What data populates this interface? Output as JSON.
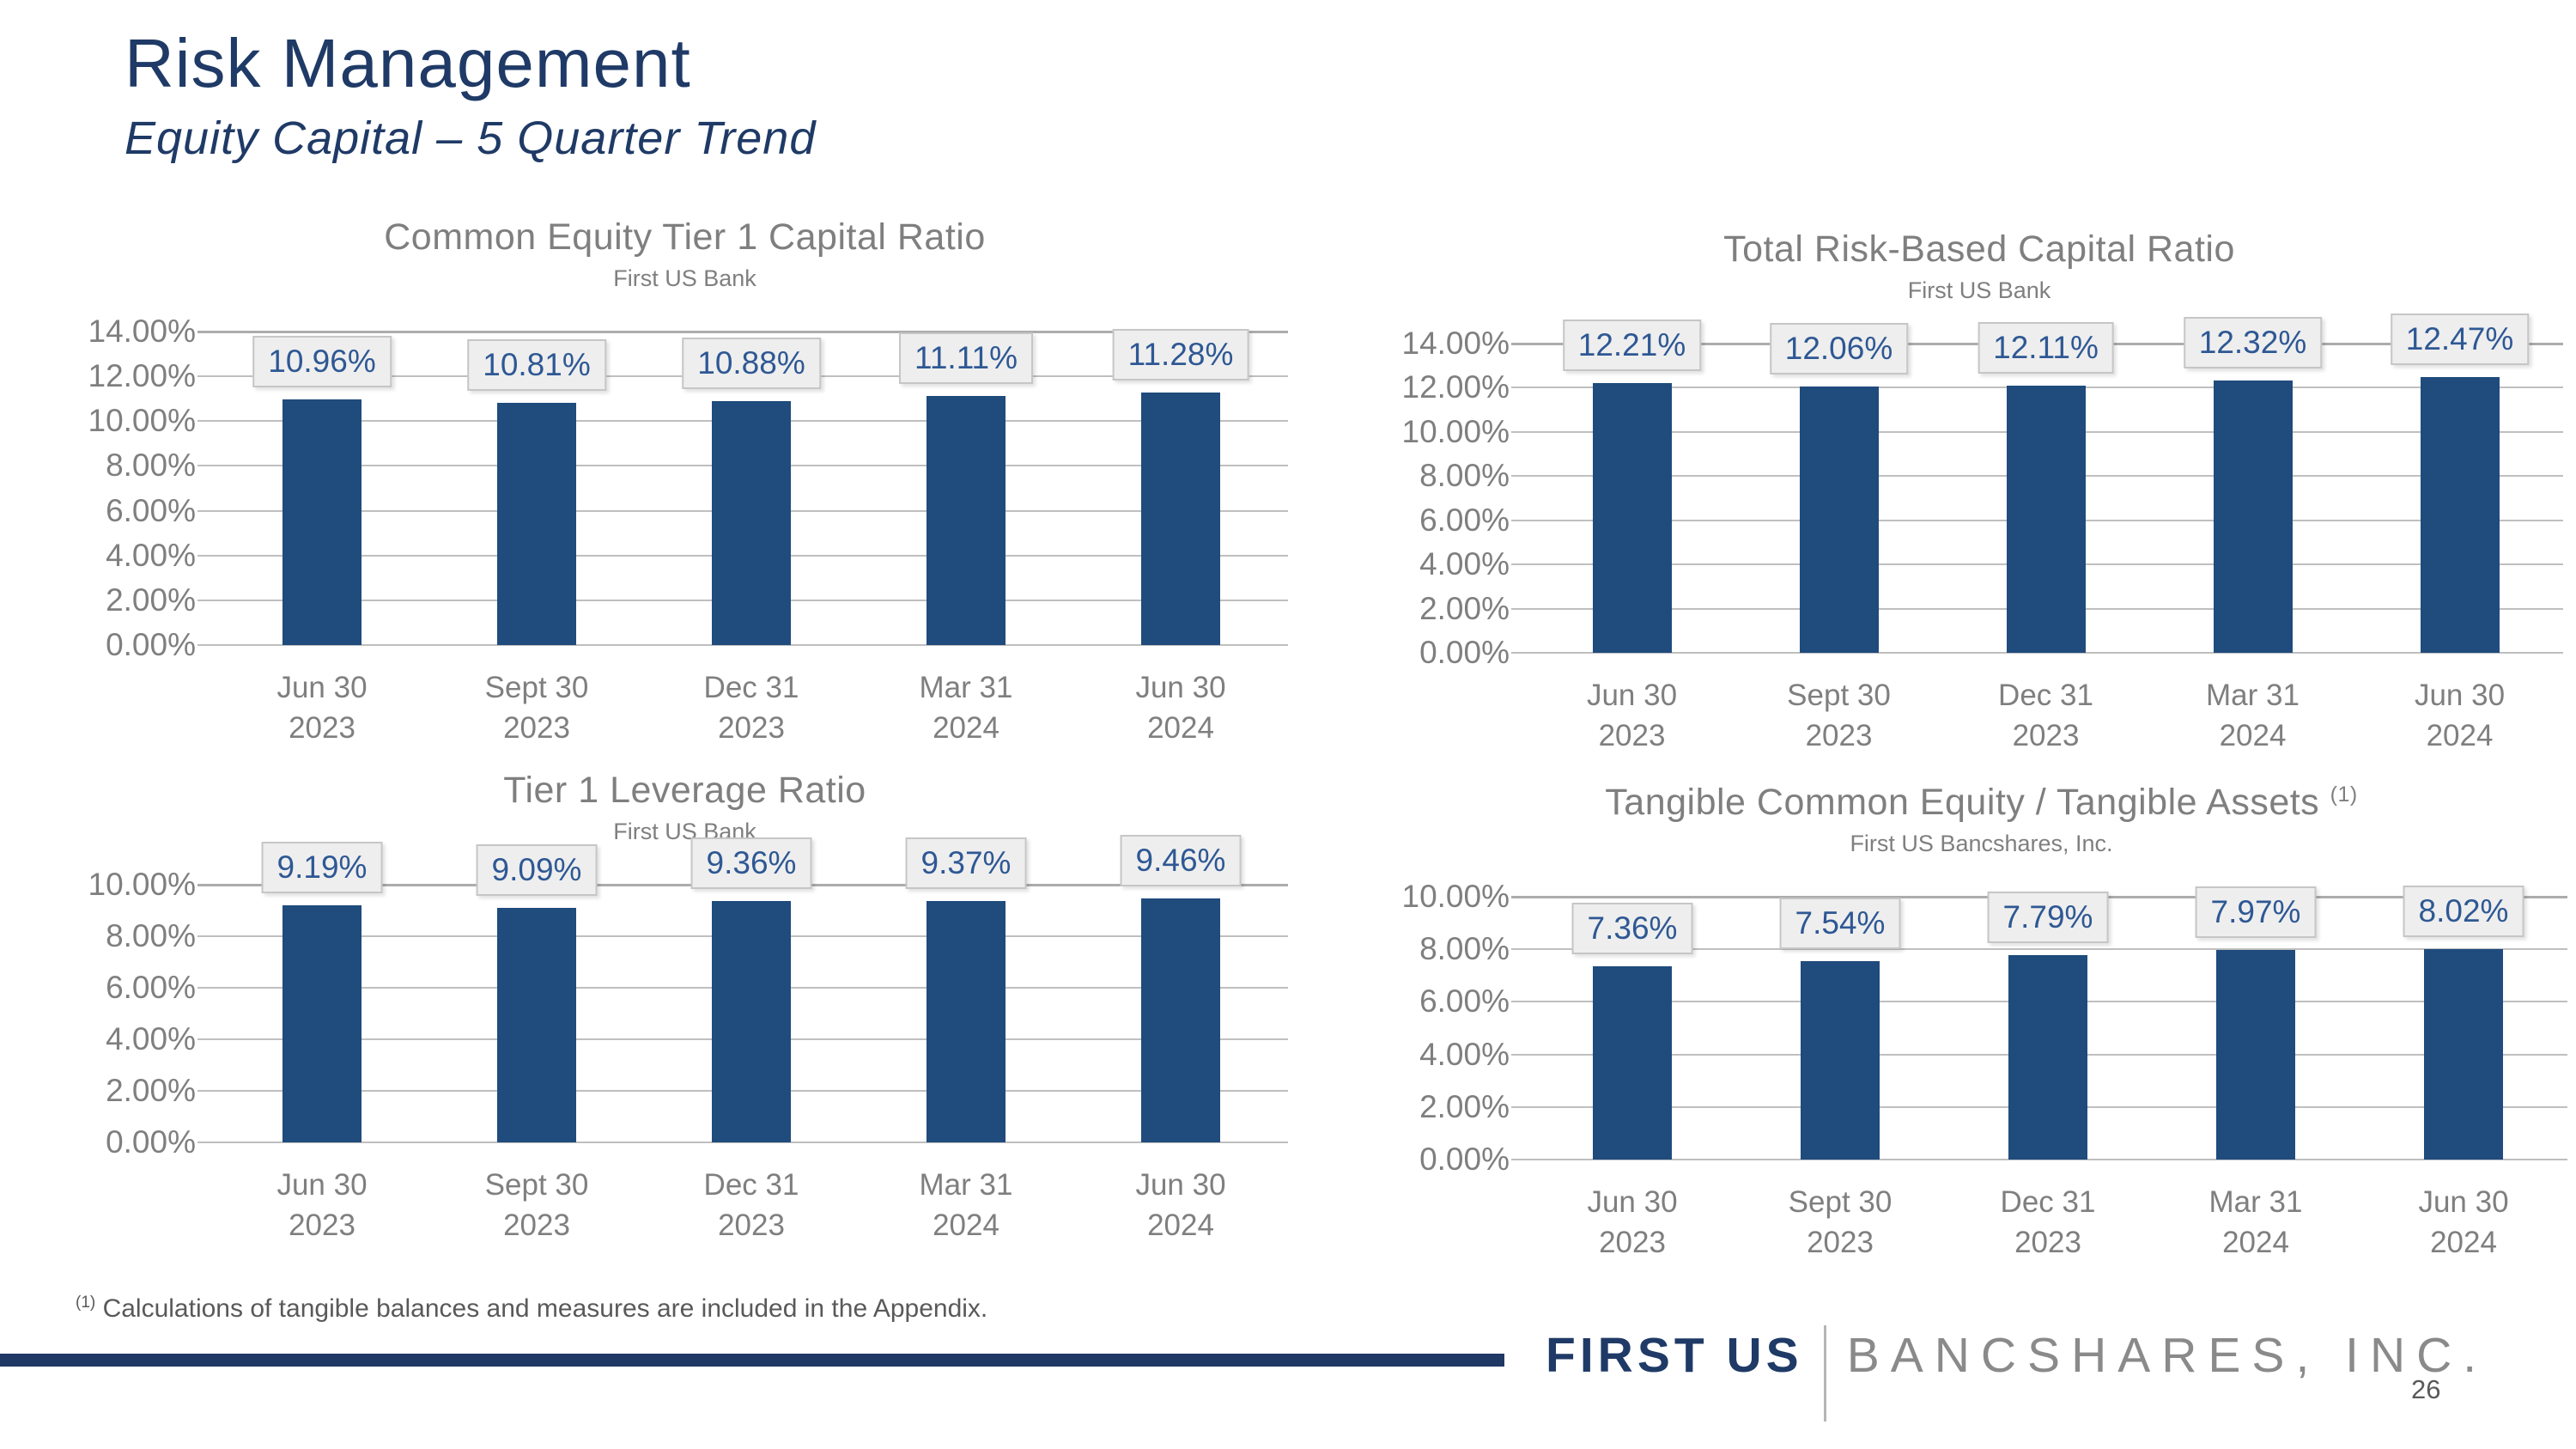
{
  "header": {
    "title": "Risk Management",
    "subtitle": "Equity Capital – 5 Quarter Trend"
  },
  "footer": {
    "footnote_marker": "(1)",
    "footnote_text": " Calculations of tangible balances and measures are included in the Appendix.",
    "logo_primary": "FIRST US",
    "logo_secondary": "BANCSHARES, INC.",
    "page_number": "26"
  },
  "colors": {
    "bar": "#1F4B7D",
    "heading_navy": "#1F3A66",
    "rule_navy": "#1F3864",
    "chart_title_gray": "#7F7F7F",
    "axis_label_gray": "#7F7F7F",
    "gridline_gray": "#BFBFBF",
    "data_label_text": "#2E5894",
    "data_label_bg": "#EEEEEE",
    "data_label_border": "#C6C6C6",
    "footnote_gray": "#595959",
    "logo_secondary_gray": "#8A8A8A"
  },
  "category_lines": [
    [
      "Jun 30",
      "2023"
    ],
    [
      "Sept 30",
      "2023"
    ],
    [
      "Dec 31",
      "2023"
    ],
    [
      "Mar 31",
      "2024"
    ],
    [
      "Jun 30",
      "2024"
    ]
  ],
  "chart_data": [
    {
      "type": "bar",
      "title": "Common Equity Tier 1 Capital Ratio",
      "subtitle": "First US Bank",
      "categories": [
        "Jun 30 2023",
        "Sept 30 2023",
        "Dec 31 2023",
        "Mar 31 2024",
        "Jun 30 2024"
      ],
      "values": [
        10.96,
        10.81,
        10.88,
        11.11,
        11.28
      ],
      "labels": [
        "10.96%",
        "10.81%",
        "10.88%",
        "11.11%",
        "11.28%"
      ],
      "xlabel": "",
      "ylabel": "",
      "ylim": [
        0,
        14
      ],
      "ytick_step": 2,
      "ytick_format": "0.00%",
      "grid": true,
      "legend": "none"
    },
    {
      "type": "bar",
      "title": "Total Risk-Based Capital Ratio",
      "subtitle": "First US Bank",
      "categories": [
        "Jun 30 2023",
        "Sept 30 2023",
        "Dec 31 2023",
        "Mar 31 2024",
        "Jun 30 2024"
      ],
      "values": [
        12.21,
        12.06,
        12.11,
        12.32,
        12.47
      ],
      "labels": [
        "12.21%",
        "12.06%",
        "12.11%",
        "12.32%",
        "12.47%"
      ],
      "xlabel": "",
      "ylabel": "",
      "ylim": [
        0,
        14
      ],
      "ytick_step": 2,
      "ytick_format": "0.00%",
      "grid": true,
      "legend": "none"
    },
    {
      "type": "bar",
      "title": "Tier 1 Leverage Ratio",
      "subtitle": "First US Bank",
      "categories": [
        "Jun 30 2023",
        "Sept 30 2023",
        "Dec 31 2023",
        "Mar 31 2024",
        "Jun 30 2024"
      ],
      "values": [
        9.19,
        9.09,
        9.36,
        9.37,
        9.46
      ],
      "labels": [
        "9.19%",
        "9.09%",
        "9.36%",
        "9.37%",
        "9.46%"
      ],
      "xlabel": "",
      "ylabel": "",
      "ylim": [
        0,
        10
      ],
      "ytick_step": 2,
      "ytick_format": "0.00%",
      "grid": true,
      "legend": "none"
    },
    {
      "type": "bar",
      "title": "Tangible Common Equity / Tangible Assets",
      "title_note": "(1)",
      "subtitle": "First US Bancshares, Inc.",
      "categories": [
        "Jun 30 2023",
        "Sept 30 2023",
        "Dec 31 2023",
        "Mar 31 2024",
        "Jun 30 2024"
      ],
      "values": [
        7.36,
        7.54,
        7.79,
        7.97,
        8.02
      ],
      "labels": [
        "7.36%",
        "7.54%",
        "7.79%",
        "7.97%",
        "8.02%"
      ],
      "xlabel": "",
      "ylabel": "",
      "ylim": [
        0,
        10
      ],
      "ytick_step": 2,
      "ytick_format": "0.00%",
      "grid": true,
      "legend": "none"
    }
  ]
}
